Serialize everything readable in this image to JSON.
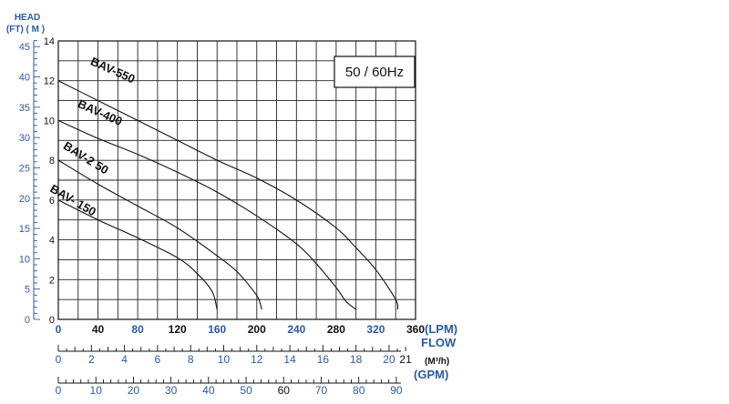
{
  "chart_data": {
    "type": "line",
    "legend_box": "50 / 60Hz",
    "y_axis": {
      "title": "HEAD",
      "units_ft_m": "(FT) ( M )",
      "meters_range": [
        0,
        14
      ],
      "meters_ticks": [
        "0",
        "2",
        "4",
        "6",
        "8",
        "10",
        "12",
        "14"
      ],
      "feet_ticks": [
        "0",
        "5",
        "10",
        "15",
        "20",
        "25",
        "30",
        "35",
        "40",
        "45"
      ]
    },
    "x_axis": {
      "lpm_range": [
        0,
        360
      ],
      "lpm_ticks": [
        "0",
        "40",
        "80",
        "120",
        "160",
        "200",
        "240",
        "280",
        "320",
        "360"
      ],
      "lpm_unit": "(LPM)",
      "flow_label": "FLOW",
      "m3h_unit": "(M³/h)",
      "m3h_ticks": [
        "0",
        "2",
        "4",
        "6",
        "8",
        "10",
        "12",
        "14",
        "16",
        "18",
        "20",
        "21"
      ],
      "gpm_unit": "(GPM)",
      "gpm_ticks": [
        "0",
        "10",
        "20",
        "30",
        "40",
        "50",
        "60",
        "70",
        "80",
        "90"
      ]
    },
    "grid": true,
    "series": [
      {
        "name": "BAV-550",
        "x": [
          0,
          40,
          80,
          120,
          160,
          200,
          240,
          280,
          300,
          320,
          340,
          342
        ],
        "y": [
          12.0,
          11.0,
          10.0,
          9.0,
          8.0,
          7.1,
          6.0,
          4.6,
          3.6,
          2.5,
          1.0,
          0.5
        ]
      },
      {
        "name": "BAV-400",
        "x": [
          0,
          40,
          80,
          120,
          160,
          200,
          240,
          260,
          280,
          290,
          300
        ],
        "y": [
          10.0,
          9.1,
          8.3,
          7.4,
          6.4,
          5.2,
          3.8,
          2.8,
          1.6,
          0.9,
          0.5
        ]
      },
      {
        "name": "BAV-2 50",
        "x": [
          0,
          40,
          80,
          120,
          160,
          180,
          200,
          205
        ],
        "y": [
          8.0,
          6.8,
          5.7,
          4.6,
          3.2,
          2.4,
          1.2,
          0.5
        ]
      },
      {
        "name": "BAV- 150",
        "x": [
          0,
          40,
          80,
          120,
          140,
          155,
          160
        ],
        "y": [
          6.0,
          5.0,
          4.1,
          3.1,
          2.3,
          1.4,
          0.5
        ]
      }
    ]
  }
}
